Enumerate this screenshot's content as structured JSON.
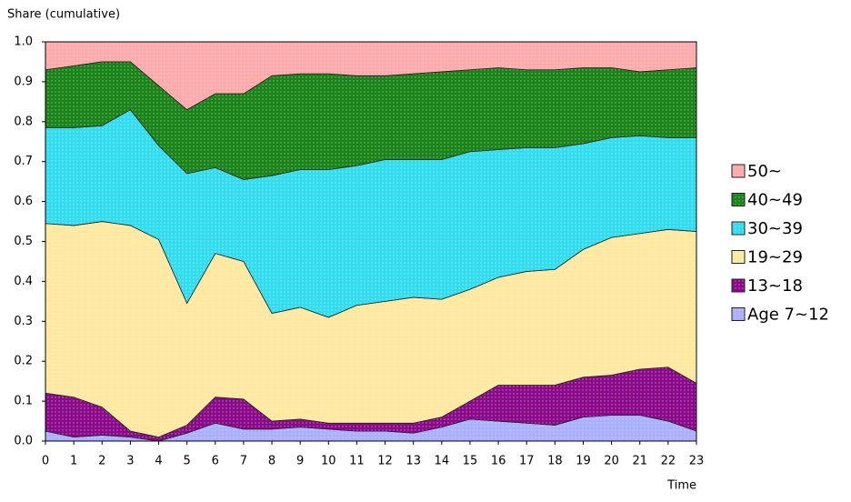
{
  "chart_data": {
    "type": "stacked_area",
    "y_label": "Share (cumulative)",
    "x_label": "Time",
    "x": [
      0,
      1,
      2,
      3,
      4,
      5,
      6,
      7,
      8,
      9,
      10,
      11,
      12,
      13,
      14,
      15,
      16,
      17,
      18,
      19,
      20,
      21,
      22,
      23
    ],
    "xlim": [
      0,
      23
    ],
    "xticks": [
      0,
      1,
      2,
      3,
      4,
      5,
      6,
      7,
      8,
      9,
      10,
      11,
      12,
      13,
      14,
      15,
      16,
      17,
      18,
      19,
      20,
      21,
      22,
      23
    ],
    "ylim": [
      0,
      1
    ],
    "yticks": [
      {
        "value": 0,
        "label": "0.0"
      },
      0.1,
      0.2,
      0.3,
      0.4,
      0.5,
      0.6,
      0.7,
      0.8,
      0.9,
      {
        "value": 1,
        "label": "1.0"
      }
    ],
    "grid": false,
    "legend": "right",
    "series": [
      {
        "name": "Age 7~12",
        "color": "#aab0ff",
        "values": [
          0.025,
          0.01,
          0.015,
          0.01,
          0.0,
          0.02,
          0.045,
          0.03,
          0.03,
          0.035,
          0.03,
          0.025,
          0.025,
          0.02,
          0.035,
          0.055,
          0.05,
          0.045,
          0.04,
          0.06,
          0.065,
          0.065,
          0.05,
          0.025
        ]
      },
      {
        "name": "13~18",
        "color": "#8b0a8b",
        "values": [
          0.095,
          0.1,
          0.07,
          0.015,
          0.01,
          0.02,
          0.065,
          0.075,
          0.02,
          0.02,
          0.015,
          0.02,
          0.02,
          0.025,
          0.025,
          0.045,
          0.09,
          0.095,
          0.1,
          0.1,
          0.1,
          0.115,
          0.135,
          0.12
        ]
      },
      {
        "name": "19~29",
        "color": "#ffe8a0",
        "values": [
          0.425,
          0.43,
          0.465,
          0.515,
          0.495,
          0.305,
          0.36,
          0.345,
          0.27,
          0.28,
          0.265,
          0.295,
          0.305,
          0.315,
          0.295,
          0.28,
          0.27,
          0.285,
          0.29,
          0.32,
          0.345,
          0.34,
          0.345,
          0.38
        ]
      },
      {
        "name": "30~39",
        "color": "#33dcee",
        "values": [
          0.24,
          0.245,
          0.24,
          0.29,
          0.235,
          0.325,
          0.215,
          0.205,
          0.345,
          0.345,
          0.37,
          0.35,
          0.355,
          0.345,
          0.35,
          0.345,
          0.32,
          0.31,
          0.305,
          0.265,
          0.25,
          0.245,
          0.23,
          0.235
        ]
      },
      {
        "name": "40~49",
        "color": "#1a841a",
        "values": [
          0.145,
          0.155,
          0.16,
          0.12,
          0.15,
          0.16,
          0.185,
          0.215,
          0.25,
          0.24,
          0.24,
          0.225,
          0.21,
          0.215,
          0.22,
          0.205,
          0.205,
          0.195,
          0.195,
          0.19,
          0.175,
          0.16,
          0.17,
          0.175
        ]
      },
      {
        "name": "50~",
        "color": "#ffaaaa",
        "values": [
          0.07,
          0.06,
          0.05,
          0.05,
          0.11,
          0.17,
          0.13,
          0.13,
          0.085,
          0.08,
          0.08,
          0.085,
          0.085,
          0.08,
          0.075,
          0.07,
          0.065,
          0.07,
          0.07,
          0.065,
          0.065,
          0.075,
          0.07,
          0.065
        ]
      }
    ]
  }
}
